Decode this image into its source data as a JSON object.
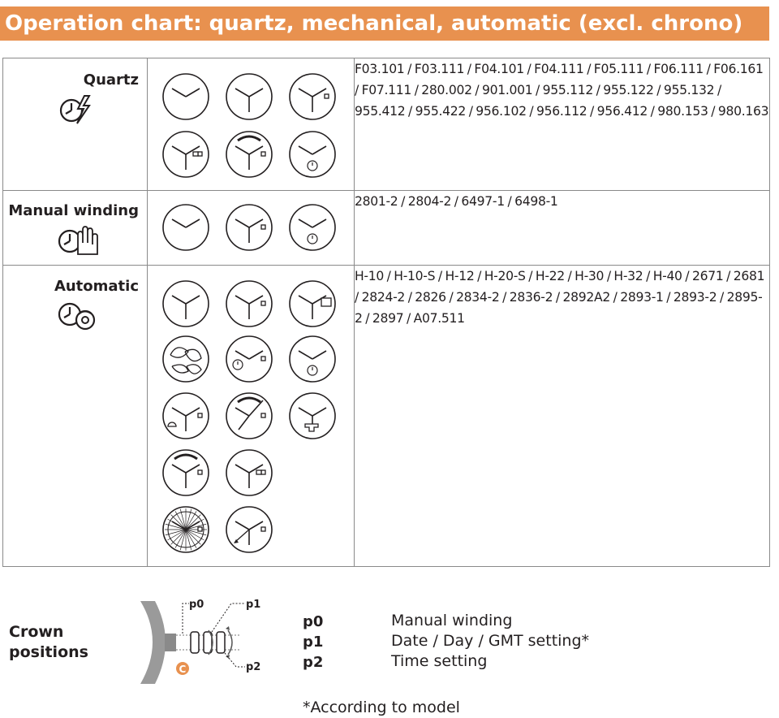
{
  "title": "Operation chart: quartz, mechanical, automatic (excl. chrono)",
  "rows": [
    {
      "category": "Quartz",
      "icon": "quartz-clock-lightning-icon",
      "references": "F03.101 / F03.111 / F04.101 / F04.111 / F05.111 / F06.111 / F06.161 / F07.111 / 280.002 / 901.001 / 955.112 / 955.122 / 955.132 / 955.412 / 955.422 / 956.102 / 956.112 / 956.412  /  980.153 / 980.163"
    },
    {
      "category": "Manual winding",
      "icon": "manual-winding-clock-hand-icon",
      "references": "2801-2 / 2804-2 / 6497-1 / 6498-1"
    },
    {
      "category": "Automatic",
      "icon": "automatic-clock-rotor-icon",
      "references": "H-10 / H-10-S / H-12 / H-20-S / H-22 / H-30 / H-32 / H-40 / 2671 / 2681 / 2824-2 / 2826 / 2834-2 / 2836-2 / 2892A2 / 2893-1 / 2893-2 / 2895-2 / 2897 / A07.511"
    }
  ],
  "crown": {
    "label_line1": "Crown",
    "label_line2": "positions",
    "diagram_labels": {
      "p0": "p0",
      "p1": "p1",
      "p2": "p2",
      "crown_mark": "C"
    },
    "positions": [
      {
        "code": "p0",
        "description": "Manual winding"
      },
      {
        "code": "p1",
        "description": "Date / Day / GMT setting*"
      },
      {
        "code": "p2",
        "description": "Time setting"
      }
    ],
    "footnote": "*According to model"
  },
  "colors": {
    "accent": "#e8914f",
    "text": "#231f20",
    "grid": "#8a8a8a"
  }
}
